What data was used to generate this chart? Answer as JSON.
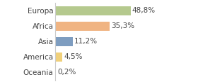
{
  "categories": [
    "Europa",
    "Africa",
    "Asia",
    "America",
    "Oceania"
  ],
  "values": [
    48.8,
    35.3,
    11.2,
    4.5,
    0.2
  ],
  "colors": [
    "#b5c98e",
    "#f0b482",
    "#7e9dc0",
    "#f0d07a",
    "#c8c8c8"
  ],
  "bar_labels": [
    "48,8%",
    "35,3%",
    "11,2%",
    "4,5%",
    "0,2%"
  ],
  "xlim": [
    0,
    90
  ],
  "background_color": "#ffffff",
  "label_fontsize": 7.5,
  "tick_fontsize": 7.5,
  "figwidth": 2.8,
  "figheight": 1.2,
  "dpi": 100
}
